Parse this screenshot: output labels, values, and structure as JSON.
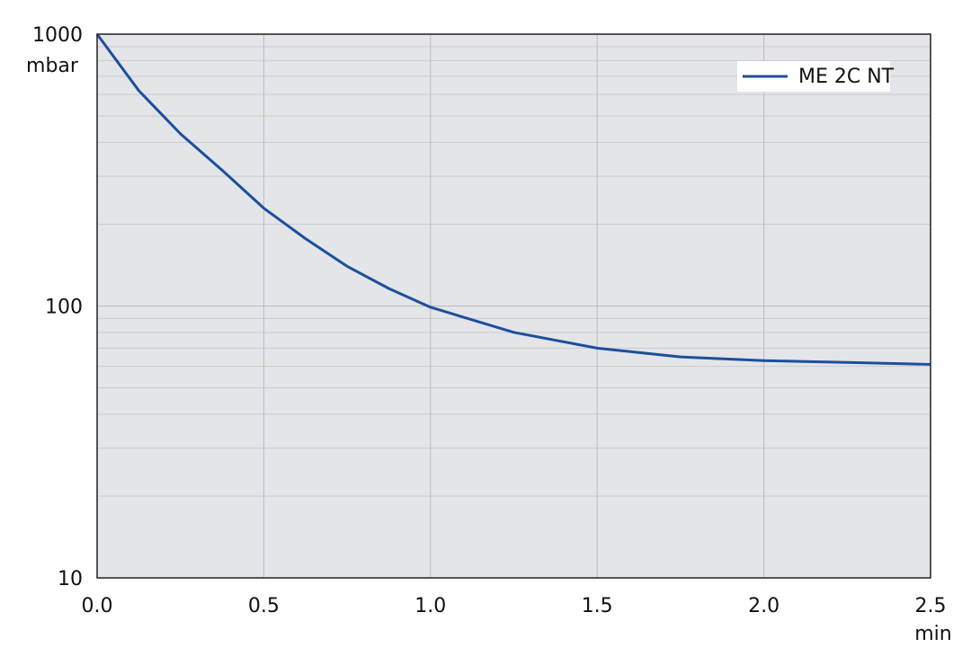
{
  "chart_data": {
    "type": "line",
    "x_unit": "min",
    "y_unit": "mbar",
    "x": [
      0,
      0.125,
      0.25,
      0.375,
      0.5,
      0.625,
      0.75,
      0.875,
      1.0,
      1.25,
      1.5,
      1.75,
      2.0,
      2.25,
      2.5
    ],
    "series": [
      {
        "name": "ME 2C NT",
        "color": "#1c4f9c",
        "values": [
          1000,
          620,
          430,
          316,
          229,
          177,
          140,
          116,
          99,
          80,
          70,
          65,
          63,
          62,
          61
        ]
      }
    ],
    "xlim": [
      0,
      2.5
    ],
    "xticks": [
      {
        "value": 0,
        "label": "0.0"
      },
      {
        "value": 0.5,
        "label": "0.5"
      },
      {
        "value": 1,
        "label": "1.0"
      },
      {
        "value": 1.5,
        "label": "1.5"
      },
      {
        "value": 2,
        "label": "2.0"
      },
      {
        "value": 2.5,
        "label": "2.5"
      }
    ],
    "ylim": [
      10,
      1000
    ],
    "yticks": [
      10,
      100,
      1000
    ],
    "log_y": true,
    "grid": true,
    "minor_grid": true,
    "legend": "top-right"
  }
}
